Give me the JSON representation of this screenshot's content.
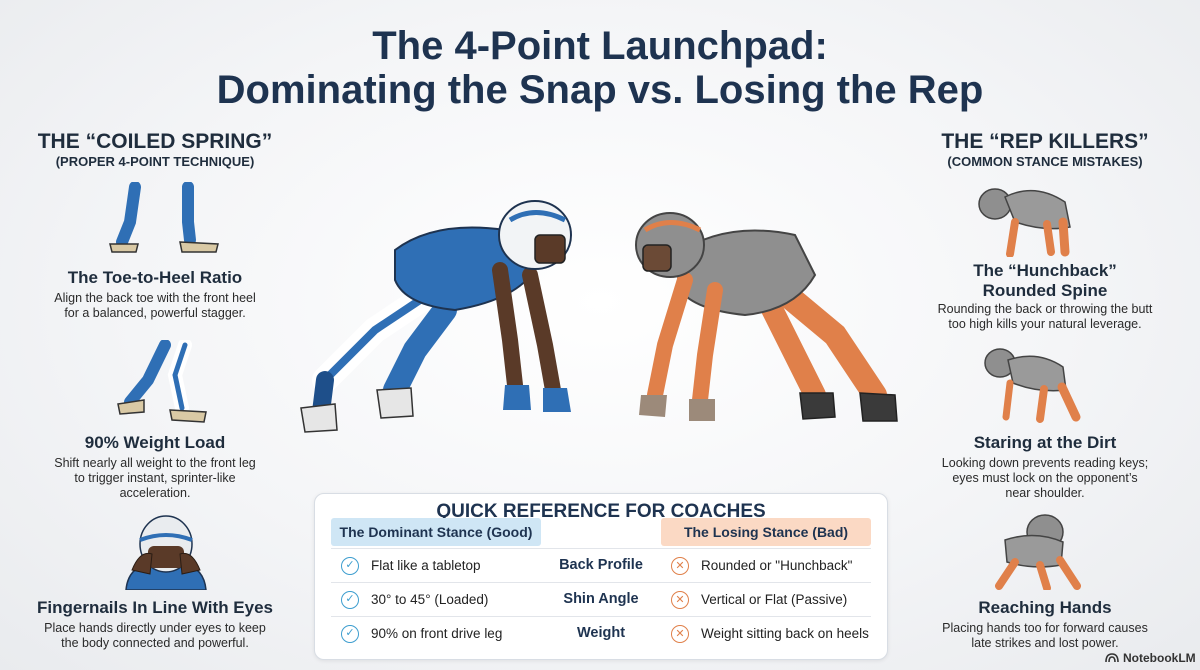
{
  "header": {
    "title_line1": "The 4-Point Launchpad:",
    "title_line2": "Dominating the Snap vs. Losing the Rep"
  },
  "left": {
    "heading": "THE “COILED SPRING”",
    "subheading": "(PROPER 4-POINT TECHNIQUE)",
    "items": [
      {
        "title": "The Toe-to-Heel Ratio",
        "desc": [
          "Align the back toe with the front heel",
          "for a balanced, powerful stagger."
        ]
      },
      {
        "title": "90% Weight Load",
        "desc": [
          "Shift nearly all weight to the front leg",
          "to trigger instant, sprinter-like",
          "acceleration."
        ]
      },
      {
        "title": "Fingernails In Line With Eyes",
        "desc": [
          "Place hands directly under eyes to keep",
          "the body connected and powerful."
        ]
      }
    ]
  },
  "right": {
    "heading": "THE “REP KILLERS”",
    "subheading": "(COMMON STANCE MISTAKES)",
    "items": [
      {
        "title": [
          "The “Hunchback”",
          "Rounded Spine"
        ],
        "desc": [
          "Rounding the back or throwing the butt",
          "too high kills your natural leverage."
        ]
      },
      {
        "title": [
          "Staring at the Dirt"
        ],
        "desc": [
          "Looking down prevents reading keys;",
          "eyes must lock on the opponent’s",
          "near shoulder."
        ]
      },
      {
        "title": [
          "Reaching Hands"
        ],
        "desc": [
          "Placing hands too for forward causes",
          "late strikes and lost power."
        ]
      }
    ]
  },
  "reference": {
    "title": "QUICK REFERENCE FOR COACHES",
    "good_header": "The Dominant Stance (Good)",
    "bad_header": "The Losing Stance (Bad)",
    "rows": [
      {
        "good": "Flat like a tabletop",
        "label": "Back Profile",
        "bad": "Rounded or \"Hunchback\""
      },
      {
        "good": "30° to 45° (Loaded)",
        "label": "Shin Angle",
        "bad": "Vertical or Flat (Passive)"
      },
      {
        "good": "90% on front drive leg",
        "label": "Weight",
        "bad": "Weight sitting back on heels"
      }
    ]
  },
  "brand": {
    "label": "NotebookLM"
  },
  "colors": {
    "good_blue": "#2f6fb5",
    "bad_orange": "#e0804a",
    "title_navy": "#1e3350",
    "good_header_bg": "#cfe6f5",
    "bad_header_bg": "#fbd9c4"
  },
  "icons": {
    "good_row": "check-circle-icon",
    "bad_row": "x-circle-icon"
  }
}
